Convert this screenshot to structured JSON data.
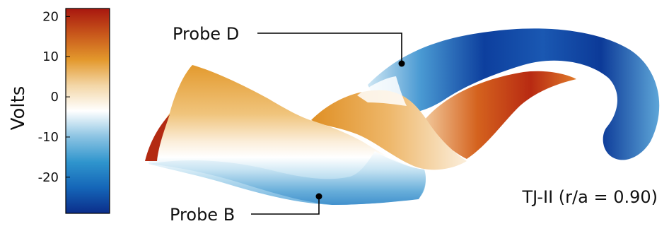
{
  "colorbar": {
    "label": "Volts",
    "ticks": [
      "20",
      "10",
      "0",
      "-10",
      "-20"
    ],
    "tick_values": [
      20,
      10,
      0,
      -10,
      -20
    ],
    "range": [
      -29,
      22
    ],
    "colors": [
      "#0b2d8a",
      "#1566b8",
      "#2f95cd",
      "#8cc4e3",
      "#ffffff",
      "#f3d6a6",
      "#e3982c",
      "#c8571b",
      "#a8170f"
    ]
  },
  "annotations": {
    "probe_d": "Probe D",
    "probe_b": "Probe B",
    "device": "TJ-II (r/a = 0.90)"
  }
}
